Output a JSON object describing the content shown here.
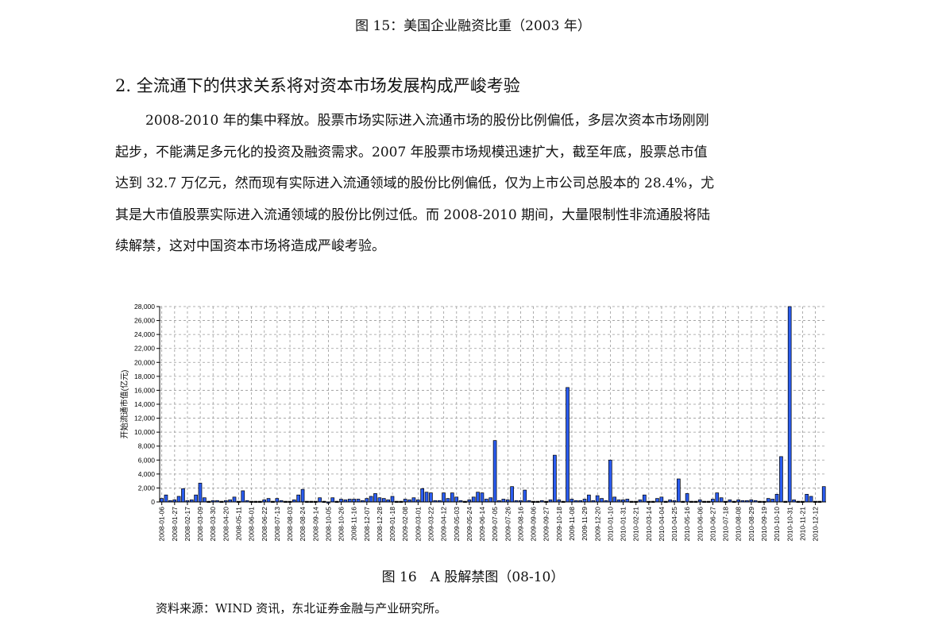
{
  "figure15_caption": "图 15：美国企业融资比重（2003 年）",
  "section_heading": "2. 全流通下的供求关系将对资本市场发展构成严峻考验",
  "paragraph_lines": [
    "2008-2010 年的集中释放。股票市场实际进入流通市场的股份比例偏低，多层次资本市场刚刚",
    "起步，不能满足多元化的投资及融资需求。2007 年股票市场规模迅速扩大，截至年底，股票总市值",
    "达到 32.7 万亿元，然而现有实际进入流通领域的股份比例偏低，仅为上市公司总股本的 28.4%，尤",
    "其是大市值股票实际进入流通领域的股份比例过低。而 2008-2010 期间，大量限制性非流通股将陆",
    "续解禁，这对中国资本市场将造成严峻考验。"
  ],
  "figure16_caption": "图 16　A 股解禁图（08-10）",
  "source_note": "资料来源：WIND 资讯，东北证券金融与产业研究所。",
  "chart_data": {
    "type": "bar",
    "title": "",
    "xlabel": "",
    "ylabel": "开始流通市值(亿元)",
    "ylim": [
      0,
      28000
    ],
    "yticks": [
      0,
      2000,
      4000,
      6000,
      8000,
      10000,
      12000,
      14000,
      16000,
      18000,
      20000,
      22000,
      24000,
      26000,
      28000
    ],
    "ytick_labels": [
      "0",
      "2,000",
      "4,000",
      "6,000",
      "8,000",
      "10,000",
      "12,000",
      "14,000",
      "16,000",
      "18,000",
      "20,000",
      "22,000",
      "24,000",
      "26,000",
      "28,000"
    ],
    "grid": true,
    "bar_color": "#2a5cf0",
    "frequency": "weekly",
    "tick_every_n_bars": 3,
    "tick_labels": [
      "2008-01-06",
      "2008-01-27",
      "2008-02-17",
      "2008-03-09",
      "2008-03-30",
      "2008-04-20",
      "2008-05-11",
      "2008-06-01",
      "2008-06-22",
      "2008-07-13",
      "2008-08-03",
      "2008-08-24",
      "2008-09-14",
      "2008-10-05",
      "2008-10-26",
      "2008-11-16",
      "2008-12-07",
      "2008-12-28",
      "2009-01-18",
      "2009-02-08",
      "2009-03-01",
      "2009-03-22",
      "2009-04-12",
      "2009-05-03",
      "2009-05-24",
      "2009-06-14",
      "2009-07-05",
      "2009-07-26",
      "2009-08-16",
      "2009-09-06",
      "2009-09-27",
      "2009-10-18",
      "2009-11-08",
      "2009-11-29",
      "2009-12-20",
      "2010-01-10",
      "2010-01-31",
      "2010-02-21",
      "2010-03-14",
      "2010-04-04",
      "2010-04-25",
      "2010-05-16",
      "2010-06-06",
      "2010-06-27",
      "2010-07-18",
      "2010-08-08",
      "2010-08-29",
      "2010-09-19",
      "2010-10-10",
      "2010-10-31",
      "2010-11-21",
      "2010-12-12"
    ],
    "values": [
      500,
      1000,
      200,
      300,
      800,
      1900,
      200,
      300,
      1000,
      2700,
      600,
      100,
      200,
      200,
      100,
      200,
      300,
      700,
      100,
      1600,
      200,
      100,
      100,
      100,
      300,
      500,
      100,
      500,
      200,
      100,
      100,
      300,
      1000,
      1800,
      100,
      100,
      100,
      600,
      100,
      0,
      600,
      100,
      400,
      300,
      400,
      400,
      400,
      200,
      500,
      800,
      1200,
      600,
      500,
      300,
      800,
      100,
      100,
      400,
      300,
      600,
      300,
      1900,
      1400,
      1300,
      200,
      200,
      1300,
      500,
      1300,
      700,
      200,
      100,
      300,
      700,
      1400,
      1300,
      400,
      600,
      8800,
      200,
      400,
      300,
      2200,
      200,
      200,
      1700,
      200,
      100,
      100,
      200,
      100,
      300,
      6700,
      300,
      100,
      16400,
      400,
      200,
      200,
      400,
      1000,
      200,
      900,
      500,
      200,
      6000,
      700,
      300,
      300,
      400,
      100,
      100,
      300,
      1000,
      100,
      100,
      500,
      700,
      100,
      300,
      200,
      3300,
      100,
      1200,
      100,
      100,
      300,
      100,
      100,
      400,
      1300,
      600,
      100,
      300,
      100,
      300,
      200,
      200,
      300,
      200,
      100,
      100,
      500,
      400,
      1100,
      6500,
      100,
      28000,
      300,
      100,
      100,
      1100,
      800,
      100,
      100,
      2200
    ]
  }
}
